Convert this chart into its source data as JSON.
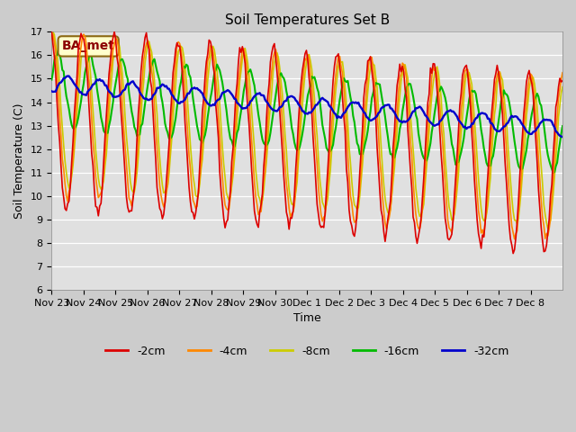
{
  "title": "Soil Temperatures Set B",
  "xlabel": "Time",
  "ylabel": "Soil Temperature (C)",
  "ylim": [
    6.0,
    17.0
  ],
  "yticks": [
    6.0,
    7.0,
    8.0,
    9.0,
    10.0,
    11.0,
    12.0,
    13.0,
    14.0,
    15.0,
    16.0,
    17.0
  ],
  "xtick_labels": [
    "Nov 23",
    "Nov 24",
    "Nov 25",
    "Nov 26",
    "Nov 27",
    "Nov 28",
    "Nov 29",
    "Nov 30",
    "Dec 1",
    "Dec 2",
    "Dec 3",
    "Dec 4",
    "Dec 5",
    "Dec 6",
    "Dec 7",
    "Dec 8"
  ],
  "colors": {
    "-2cm": "#dd0000",
    "-4cm": "#ff8800",
    "-8cm": "#cccc00",
    "-16cm": "#00bb00",
    "-32cm": "#0000cc"
  },
  "legend_labels": [
    "-2cm",
    "-4cm",
    "-8cm",
    "-16cm",
    "-32cm"
  ],
  "annotation_text": "BA_met",
  "bg_color": "#e0e0e0",
  "line_width": 1.2
}
